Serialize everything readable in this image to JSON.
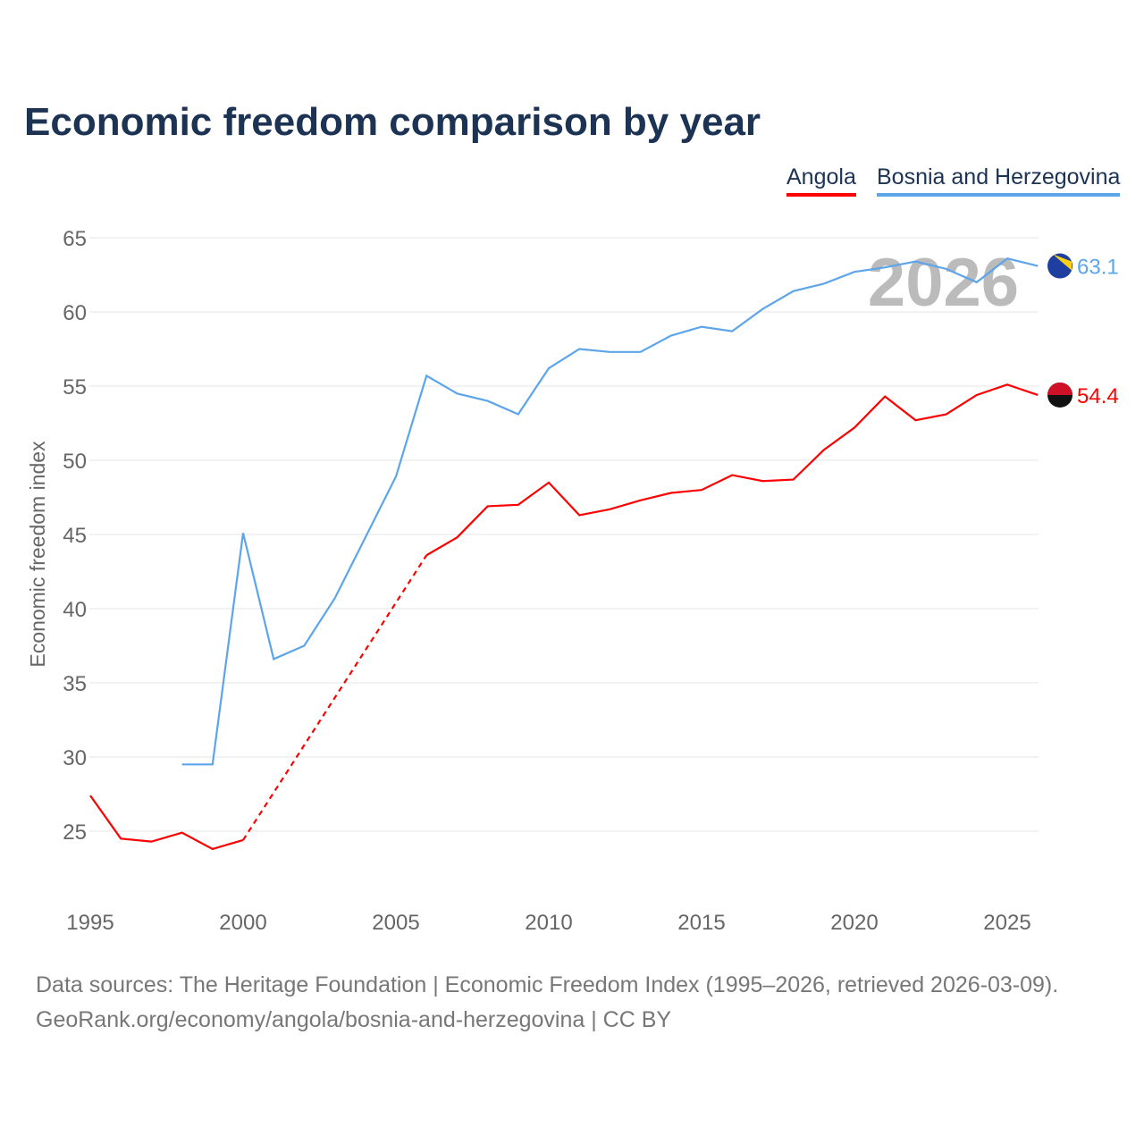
{
  "title": "Economic freedom comparison by year",
  "chart_data": {
    "type": "line",
    "title": "Economic freedom comparison by year",
    "ylabel": "Economic freedom index",
    "xlabel": "",
    "ylim": [
      20,
      65
    ],
    "xlim": [
      1995,
      2026
    ],
    "yticks": [
      25,
      30,
      35,
      40,
      45,
      50,
      55,
      60,
      65
    ],
    "xticks": [
      1995,
      2000,
      2005,
      2010,
      2015,
      2020,
      2025
    ],
    "grid": true,
    "legend_position": "top-right",
    "watermark_year": "2026",
    "x": [
      1995,
      1996,
      1997,
      1998,
      1999,
      2000,
      2001,
      2002,
      2003,
      2004,
      2005,
      2006,
      2007,
      2008,
      2009,
      2010,
      2011,
      2012,
      2013,
      2014,
      2015,
      2016,
      2017,
      2018,
      2019,
      2020,
      2021,
      2022,
      2023,
      2024,
      2025,
      2026
    ],
    "series": [
      {
        "name": "Angola",
        "color": "#ff0000",
        "end_label": "54.4",
        "values": [
          27.4,
          24.5,
          24.3,
          24.9,
          23.8,
          24.4,
          null,
          null,
          null,
          null,
          null,
          43.6,
          44.8,
          46.9,
          47.0,
          48.5,
          46.3,
          46.7,
          47.3,
          47.8,
          48.0,
          49.0,
          48.6,
          48.7,
          50.7,
          52.2,
          54.3,
          52.7,
          53.1,
          54.4,
          55.1,
          54.4
        ]
      },
      {
        "name": "Bosnia and Herzegovina",
        "color": "#5da5ea",
        "end_label": "63.1",
        "values": [
          null,
          null,
          null,
          29.5,
          29.5,
          45.1,
          36.6,
          37.5,
          40.7,
          44.8,
          48.9,
          55.7,
          54.5,
          54.0,
          53.1,
          56.2,
          57.5,
          57.3,
          57.3,
          58.4,
          59.0,
          58.7,
          60.2,
          61.4,
          61.9,
          62.7,
          63.0,
          63.4,
          62.9,
          62.0,
          63.6,
          63.1
        ]
      }
    ]
  },
  "footer": {
    "line1": "Data sources: The Heritage Foundation | Economic Freedom Index (1995–2026, retrieved 2026-03-09).",
    "line2": "GeoRank.org/economy/angola/bosnia-and-herzegovina | CC BY"
  }
}
